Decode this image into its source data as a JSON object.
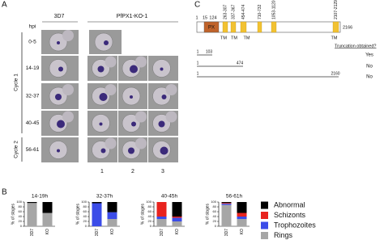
{
  "panel_a": {
    "label": "A",
    "col_headers": [
      "3D7",
      "PfPX1-KO-1"
    ],
    "hpi_label": "hpi",
    "rows": [
      "0-5",
      "14-19",
      "32-37",
      "40-45",
      "56-61"
    ],
    "cycles": [
      "Cycle 1",
      "Cycle 2"
    ],
    "clone_numbers": [
      "1",
      "2",
      "3"
    ]
  },
  "panel_c": {
    "label": "C",
    "residues": [
      "1",
      "15",
      "124",
      "2166"
    ],
    "domain": "PX",
    "segments": [
      "263-307",
      "337-367",
      "454-474",
      "710-732",
      "1053-1120",
      "2107-2129"
    ],
    "tm_labels": [
      "TM",
      "TM",
      "TM",
      "TM"
    ],
    "truncation_header": "Truncation obtained?",
    "truncations": [
      {
        "start": "1",
        "end": "103",
        "result": "Yes"
      },
      {
        "start": "1",
        "end": "474",
        "result": "No"
      },
      {
        "start": "1",
        "end": "2160",
        "result": "No"
      }
    ]
  },
  "panel_b": {
    "label": "B"
  },
  "chart_data": [
    {
      "type": "bar",
      "stacked": true,
      "title": "14-19h",
      "ylabel": "% of stages",
      "categories": [
        "3D7",
        "KO"
      ],
      "ylim": [
        0,
        100
      ],
      "yticks": [
        0,
        20,
        40,
        60,
        80,
        100
      ],
      "series": [
        {
          "name": "Rings",
          "color": "#a6a6a6",
          "values": [
            96,
            55
          ]
        },
        {
          "name": "Trophozoites",
          "color": "#3b4ce8",
          "values": [
            0,
            0
          ]
        },
        {
          "name": "Schizonts",
          "color": "#e8231e",
          "values": [
            0,
            0
          ]
        },
        {
          "name": "Abnormal",
          "color": "#000000",
          "values": [
            4,
            45
          ]
        }
      ]
    },
    {
      "type": "bar",
      "stacked": true,
      "title": "32-37h",
      "ylabel": "% of stages",
      "categories": [
        "3D7",
        "KO"
      ],
      "ylim": [
        0,
        100
      ],
      "yticks": [
        0,
        20,
        40,
        60,
        80,
        100
      ],
      "series": [
        {
          "name": "Rings",
          "color": "#a6a6a6",
          "values": [
            0,
            30
          ]
        },
        {
          "name": "Trophozoites",
          "color": "#3b4ce8",
          "values": [
            95,
            28
          ]
        },
        {
          "name": "Schizonts",
          "color": "#e8231e",
          "values": [
            0,
            0
          ]
        },
        {
          "name": "Abnormal",
          "color": "#000000",
          "values": [
            5,
            42
          ]
        }
      ]
    },
    {
      "type": "bar",
      "stacked": true,
      "title": "40-45h",
      "ylabel": "% of stages",
      "categories": [
        "3D7",
        "KO"
      ],
      "ylim": [
        0,
        100
      ],
      "yticks": [
        0,
        20,
        40,
        60,
        80,
        100
      ],
      "series": [
        {
          "name": "Rings",
          "color": "#a6a6a6",
          "values": [
            30,
            20
          ]
        },
        {
          "name": "Trophozoites",
          "color": "#3b4ce8",
          "values": [
            10,
            15
          ]
        },
        {
          "name": "Schizonts",
          "color": "#e8231e",
          "values": [
            60,
            5
          ]
        },
        {
          "name": "Abnormal",
          "color": "#000000",
          "values": [
            0,
            60
          ]
        }
      ]
    },
    {
      "type": "bar",
      "stacked": true,
      "title": "56-61h",
      "ylabel": "% of stages",
      "categories": [
        "3D7",
        "KO"
      ],
      "ylim": [
        0,
        100
      ],
      "yticks": [
        0,
        20,
        40,
        60,
        80,
        100
      ],
      "series": [
        {
          "name": "Rings",
          "color": "#a6a6a6",
          "values": [
            88,
            30
          ]
        },
        {
          "name": "Trophozoites",
          "color": "#3b4ce8",
          "values": [
            5,
            10
          ]
        },
        {
          "name": "Schizonts",
          "color": "#e8231e",
          "values": [
            3,
            15
          ]
        },
        {
          "name": "Abnormal",
          "color": "#000000",
          "values": [
            4,
            45
          ]
        }
      ]
    }
  ]
}
